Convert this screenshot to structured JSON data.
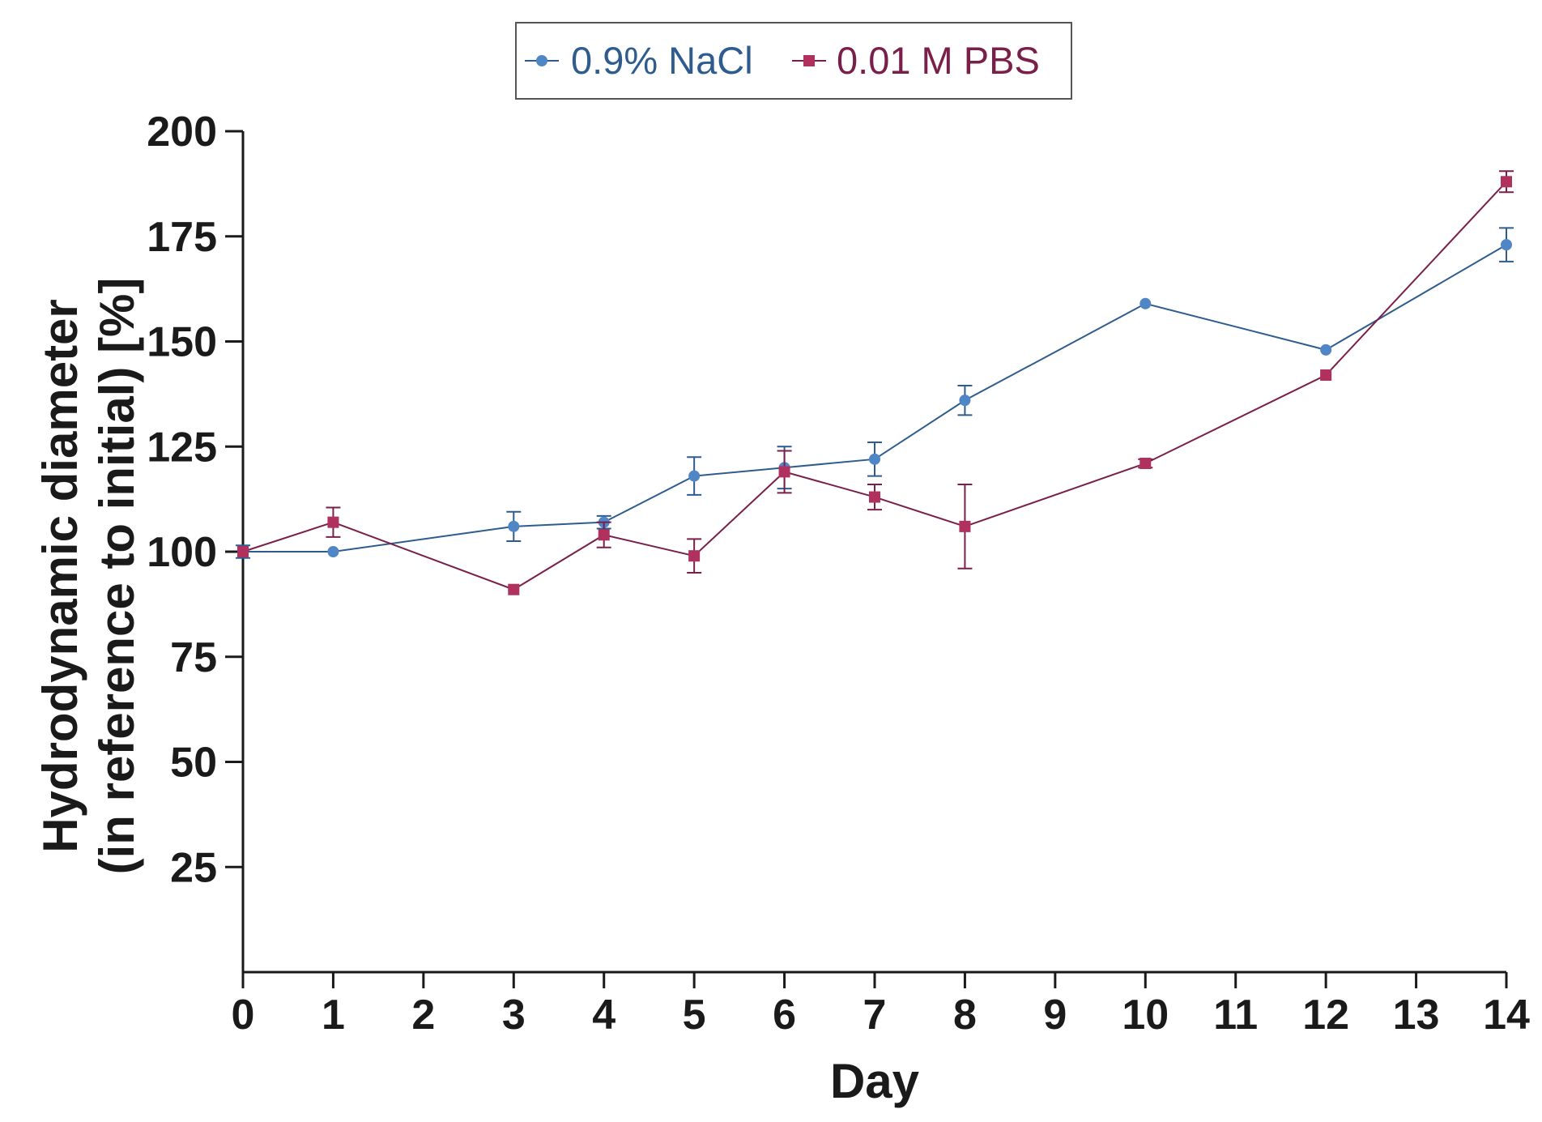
{
  "chart_data": {
    "type": "line",
    "title": "",
    "xlabel": "Day",
    "ylabel_lines": [
      "Hydrodynamic diameter",
      "(in reference to initial) [%]"
    ],
    "xlim": [
      0,
      14
    ],
    "ylim": [
      0,
      200
    ],
    "x_ticks": [
      0,
      1,
      2,
      3,
      4,
      5,
      6,
      7,
      8,
      9,
      10,
      11,
      12,
      13,
      14
    ],
    "y_ticks": [
      25,
      50,
      75,
      100,
      125,
      150,
      175,
      200
    ],
    "grid": false,
    "legend_position": "top-center",
    "series": [
      {
        "name": "0.9% NaCl",
        "color": "#2e5c8e",
        "marker_color": "#4f86c6",
        "marker": "circle",
        "x": [
          0,
          1,
          3,
          4,
          5,
          6,
          7,
          8,
          10,
          12,
          14
        ],
        "values": [
          100,
          100,
          106,
          107,
          118,
          120,
          122,
          136,
          159,
          148,
          173
        ],
        "errors": [
          1.5,
          0.5,
          3.5,
          1.5,
          4.5,
          5,
          4,
          3.5,
          0.5,
          0.5,
          4
        ]
      },
      {
        "name": "0.01 M PBS",
        "color": "#7a1f4a",
        "marker_color": "#b0305e",
        "marker": "square",
        "x": [
          0,
          1,
          3,
          4,
          5,
          6,
          7,
          8,
          10,
          12,
          14
        ],
        "values": [
          100,
          107,
          91,
          104,
          99,
          119,
          113,
          106,
          121,
          142,
          188
        ],
        "errors": [
          0.5,
          3.5,
          0.5,
          3,
          4,
          5,
          3,
          10,
          1,
          0.5,
          2.5
        ]
      }
    ]
  }
}
